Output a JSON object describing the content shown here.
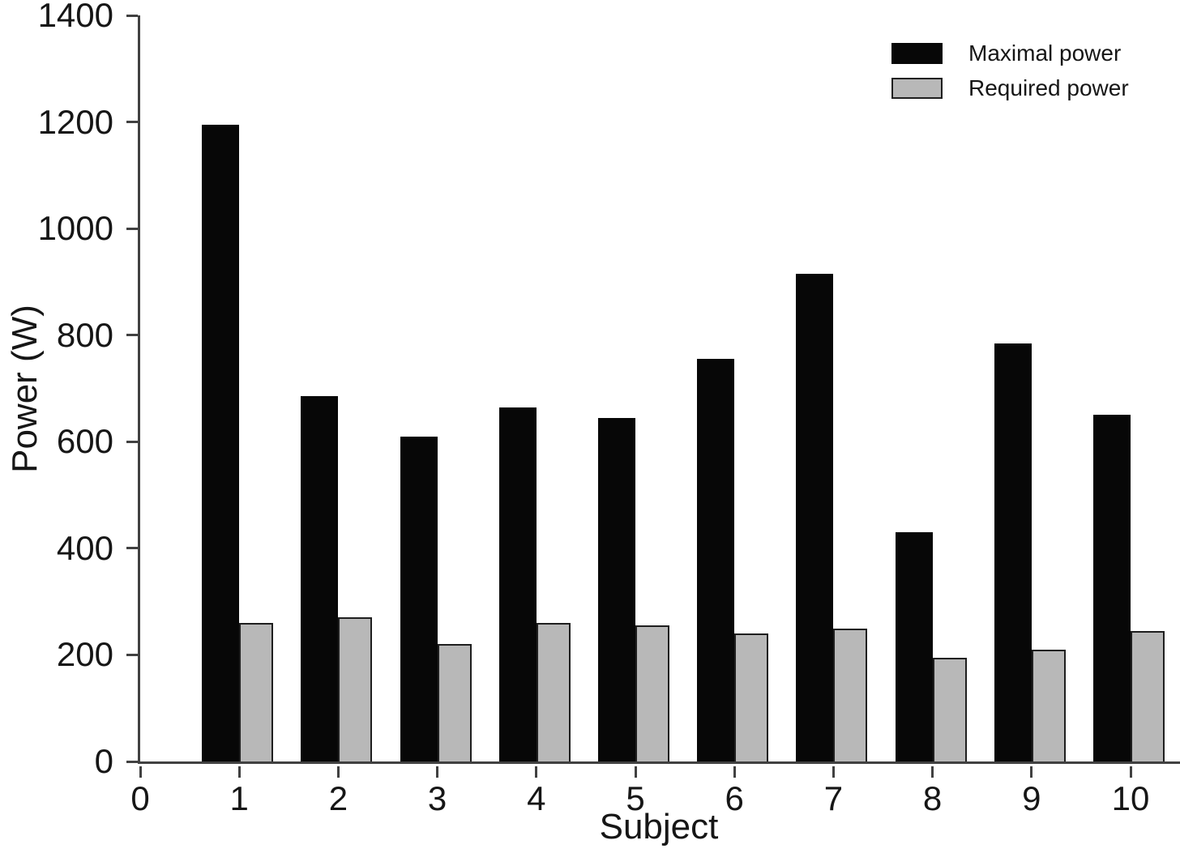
{
  "chart_data": {
    "type": "bar",
    "title": "",
    "xlabel": "Subject",
    "ylabel": "Power (W)",
    "categories": [
      "1",
      "2",
      "3",
      "4",
      "5",
      "6",
      "7",
      "8",
      "9",
      "10"
    ],
    "series": [
      {
        "name": "Maximal power",
        "color": "#070707",
        "values": [
          1195,
          685,
          610,
          665,
          645,
          755,
          915,
          430,
          785,
          650
        ]
      },
      {
        "name": "Required power",
        "color": "#b8b8b8",
        "values": [
          260,
          270,
          220,
          260,
          255,
          240,
          250,
          195,
          210,
          245
        ]
      }
    ],
    "ylim": [
      0,
      1400
    ],
    "yticks": [
      0,
      200,
      400,
      600,
      800,
      1000,
      1200,
      1400
    ],
    "xticks": [
      0,
      1,
      2,
      3,
      4,
      5,
      6,
      7,
      8,
      9,
      10
    ],
    "grid": false,
    "legend_position": "top-right",
    "axis_color": "#414141",
    "text_color": "#161616"
  }
}
